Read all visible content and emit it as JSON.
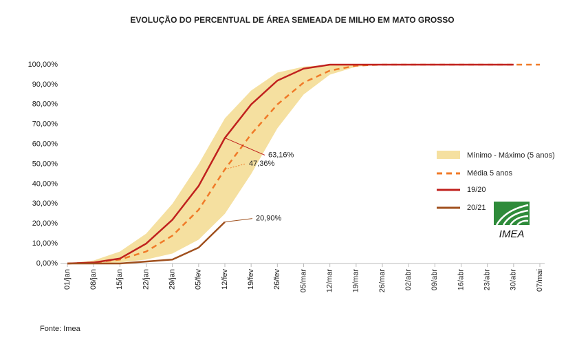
{
  "chart_data": {
    "type": "line",
    "title": "EVOLUÇÃO DO PERCENTUAL DE ÁREA SEMEADA DE MILHO EM MATO GROSSO",
    "source": "Fonte: Imea",
    "logo_text": "IMEA",
    "categories": [
      "01/jan",
      "08/jan",
      "15/jan",
      "22/jan",
      "29/jan",
      "05/fev",
      "12/fev",
      "19/fev",
      "26/fev",
      "05/mar",
      "12/mar",
      "19/mar",
      "26/mar",
      "02/abr",
      "09/abr",
      "16/abr",
      "23/abr",
      "30/abr",
      "07/mai"
    ],
    "ylim": [
      0,
      100
    ],
    "yticks": [
      {
        "value": 0,
        "label": "0,00%"
      },
      {
        "value": 10,
        "label": "10,00%"
      },
      {
        "value": 20,
        "label": "20,00%"
      },
      {
        "value": 30,
        "label": "30,00%"
      },
      {
        "value": 40,
        "label": "40,00%"
      },
      {
        "value": 50,
        "label": "50,00%"
      },
      {
        "value": 60,
        "label": "60,00%"
      },
      {
        "value": 70,
        "label": "70,00%"
      },
      {
        "value": 80,
        "label": "80,00%"
      },
      {
        "value": 90,
        "label": "90,00%"
      },
      {
        "value": 100,
        "label": "100,00%"
      }
    ],
    "band": {
      "name": "Mínimo - Máximo (5 anos)",
      "color": "#f5e0a0",
      "upper": [
        0,
        1.5,
        6,
        15,
        30,
        50,
        73,
        87,
        96,
        99,
        100,
        100,
        100,
        100,
        100,
        100,
        100,
        100,
        null
      ],
      "lower": [
        0,
        0,
        0.5,
        2,
        5,
        12,
        25,
        45,
        68,
        85,
        95,
        99,
        100,
        100,
        100,
        100,
        100,
        100,
        null
      ]
    },
    "series": [
      {
        "name": "Média 5 anos",
        "color": "#f07a28",
        "dashed": true,
        "values": [
          0,
          0.5,
          2,
          6,
          14,
          27,
          47.36,
          65,
          80,
          91,
          97,
          99.5,
          100,
          100,
          100,
          100,
          100,
          100,
          100
        ],
        "value_labels": [
          null,
          null,
          null,
          null,
          null,
          null,
          "47,36%",
          null,
          null,
          null,
          null,
          null,
          null,
          null,
          null,
          null,
          null,
          null,
          null
        ]
      },
      {
        "name": "19/20",
        "color": "#c0211e",
        "dashed": false,
        "values": [
          0,
          0.5,
          2.5,
          10,
          22,
          39,
          63.16,
          80,
          92,
          98,
          100,
          100,
          100,
          100,
          100,
          100,
          100,
          100,
          null
        ],
        "value_labels": [
          null,
          null,
          null,
          null,
          null,
          null,
          "63,16%",
          null,
          null,
          null,
          null,
          null,
          null,
          null,
          null,
          null,
          null,
          null,
          null
        ]
      },
      {
        "name": "20/21",
        "color": "#a0501e",
        "dashed": false,
        "values": [
          0,
          0,
          0,
          1,
          2,
          8,
          20.9,
          null,
          null,
          null,
          null,
          null,
          null,
          null,
          null,
          null,
          null,
          null,
          null
        ],
        "value_labels": [
          null,
          null,
          null,
          null,
          null,
          null,
          "20,90%",
          null,
          null,
          null,
          null,
          null,
          null,
          null,
          null,
          null,
          null,
          null,
          null
        ]
      }
    ]
  }
}
